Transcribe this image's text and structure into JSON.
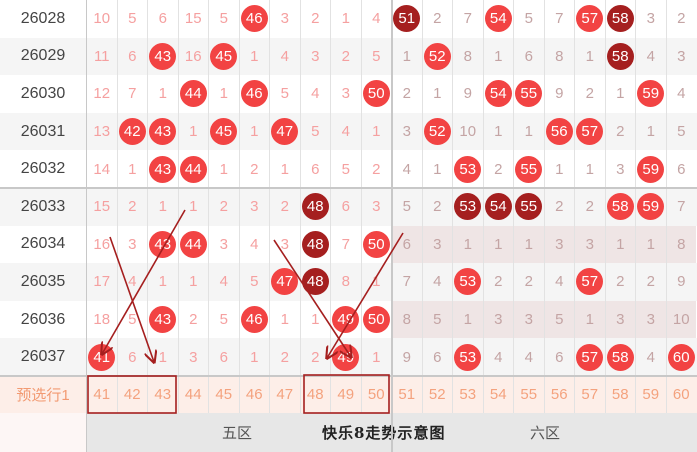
{
  "columns": [
    "41",
    "42",
    "43",
    "44",
    "45",
    "46",
    "47",
    "48",
    "49",
    "50",
    "51",
    "52",
    "53",
    "54",
    "55",
    "56",
    "57",
    "58",
    "59",
    "60"
  ],
  "rows": [
    {
      "issue": "26028",
      "cells": [
        "10",
        "5",
        "6",
        "15",
        "5",
        "46",
        "3",
        "2",
        "1",
        "4",
        "51",
        "2",
        "7",
        "54",
        "5",
        "7",
        "57",
        "58",
        "3",
        "2"
      ],
      "dark": [
        "51",
        "58"
      ]
    },
    {
      "issue": "26029",
      "cells": [
        "11",
        "6",
        "43",
        "16",
        "45",
        "1",
        "4",
        "3",
        "2",
        "5",
        "1",
        "52",
        "8",
        "1",
        "6",
        "8",
        "1",
        "58",
        "4",
        "3"
      ],
      "dark": [
        "58"
      ]
    },
    {
      "issue": "26030",
      "cells": [
        "12",
        "7",
        "1",
        "44",
        "1",
        "46",
        "5",
        "4",
        "3",
        "50",
        "2",
        "1",
        "9",
        "54",
        "55",
        "9",
        "2",
        "1",
        "59",
        "4"
      ],
      "dark": []
    },
    {
      "issue": "26031",
      "cells": [
        "13",
        "42",
        "43",
        "1",
        "45",
        "1",
        "47",
        "5",
        "4",
        "1",
        "3",
        "52",
        "10",
        "1",
        "1",
        "56",
        "57",
        "2",
        "1",
        "5"
      ],
      "dark": []
    },
    {
      "issue": "26032",
      "cells": [
        "14",
        "1",
        "43",
        "44",
        "1",
        "2",
        "1",
        "6",
        "5",
        "2",
        "4",
        "1",
        "53",
        "2",
        "55",
        "1",
        "1",
        "3",
        "59",
        "6"
      ],
      "dark": []
    },
    {
      "issue": "26033",
      "cells": [
        "15",
        "2",
        "1",
        "1",
        "2",
        "3",
        "2",
        "48",
        "6",
        "3",
        "5",
        "2",
        "53",
        "54",
        "55",
        "2",
        "2",
        "58",
        "59",
        "7"
      ],
      "dark": [
        "48",
        "53",
        "54",
        "55"
      ]
    },
    {
      "issue": "26034",
      "cells": [
        "16",
        "3",
        "43",
        "44",
        "3",
        "4",
        "3",
        "48",
        "7",
        "50",
        "6",
        "3",
        "1",
        "1",
        "1",
        "3",
        "3",
        "1",
        "1",
        "8"
      ],
      "dark": [
        "48"
      ]
    },
    {
      "issue": "26035",
      "cells": [
        "17",
        "4",
        "1",
        "1",
        "4",
        "5",
        "47",
        "48",
        "8",
        "1",
        "7",
        "4",
        "53",
        "2",
        "2",
        "4",
        "57",
        "2",
        "2",
        "9"
      ],
      "dark": [
        "48"
      ]
    },
    {
      "issue": "26036",
      "cells": [
        "18",
        "5",
        "43",
        "2",
        "5",
        "46",
        "1",
        "1",
        "49",
        "50",
        "8",
        "5",
        "1",
        "3",
        "3",
        "5",
        "1",
        "3",
        "3",
        "10"
      ],
      "dark": []
    },
    {
      "issue": "26037",
      "cells": [
        "41",
        "6",
        "1",
        "3",
        "6",
        "1",
        "2",
        "2",
        "49",
        "1",
        "9",
        "6",
        "53",
        "4",
        "4",
        "6",
        "57",
        "58",
        "4",
        "60"
      ],
      "dark": []
    }
  ],
  "prediction_row": {
    "label": "预选行1",
    "cells": [
      "41",
      "42",
      "43",
      "44",
      "45",
      "46",
      "47",
      "48",
      "49",
      "50",
      "51",
      "52",
      "53",
      "54",
      "55",
      "56",
      "57",
      "58",
      "59",
      "60"
    ]
  },
  "footer": {
    "zone5": "五区",
    "title": "快乐8走势示意图",
    "zone6": "六区"
  },
  "colors": {
    "ball": "#f24343",
    "ball_dark": "#a51f1f",
    "arrow": "#a51f1f"
  }
}
